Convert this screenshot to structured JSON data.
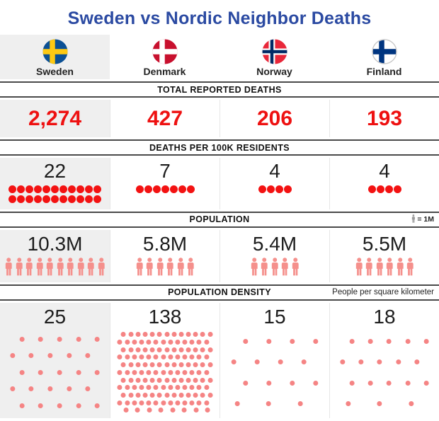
{
  "title": "Sweden vs Nordic Neighbor Deaths",
  "bands": {
    "deaths": "TOTAL REPORTED DEATHS",
    "per100k": "DEATHS PER 100K RESIDENTS",
    "population": "POPULATION",
    "population_legend": "= 1M",
    "density": "POPULATION DENSITY",
    "density_legend": "People per square kilometer"
  },
  "countries": [
    {
      "name": "Sweden",
      "highlight": true,
      "deaths": "2,274",
      "per_100k": 22,
      "population": "10.3M",
      "population_millions": 10.3,
      "density": 25,
      "flag": {
        "kind": "sweden-flag",
        "bg": "#0b5095",
        "cross": "#fdc913"
      }
    },
    {
      "name": "Denmark",
      "highlight": false,
      "deaths": "427",
      "per_100k": 7,
      "population": "5.8M",
      "population_millions": 5.8,
      "density": 138,
      "flag": {
        "kind": "denmark-flag",
        "bg": "#c8102e",
        "cross": "#ffffff"
      }
    },
    {
      "name": "Norway",
      "highlight": false,
      "deaths": "206",
      "per_100k": 4,
      "population": "5.4M",
      "population_millions": 5.4,
      "density": 15,
      "flag": {
        "kind": "norway-flag",
        "bg": "#e8273a",
        "cross": "#ffffff",
        "inner": "#002a66"
      }
    },
    {
      "name": "Finland",
      "highlight": false,
      "deaths": "193",
      "per_100k": 4,
      "population": "5.5M",
      "population_millions": 5.5,
      "density": 18,
      "flag": {
        "kind": "finland-flag",
        "bg": "#ffffff",
        "cross": "#003580",
        "border": "#c9c9c9"
      }
    }
  ],
  "colors": {
    "title": "#2b4aa2",
    "death_value": "#ee1111",
    "death_dot": "#f31212",
    "person": "#f5908c",
    "density_dot": "#f58484",
    "legend_person": "#9a9a9a",
    "band_border": "#4a4a4a",
    "highlight_bg": "#efefef"
  },
  "chart_data": {
    "type": "table",
    "title": "Sweden vs Nordic Neighbor Deaths",
    "categories": [
      "Sweden",
      "Denmark",
      "Norway",
      "Finland"
    ],
    "series": [
      {
        "name": "Total reported deaths",
        "values": [
          2274,
          427,
          206,
          193
        ]
      },
      {
        "name": "Deaths per 100K residents",
        "values": [
          22,
          7,
          4,
          4
        ]
      },
      {
        "name": "Population (millions)",
        "values": [
          10.3,
          5.8,
          5.4,
          5.5
        ]
      },
      {
        "name": "Population density (people per square kilometer)",
        "values": [
          25,
          138,
          15,
          18
        ]
      }
    ],
    "legend_notes": [
      "1 person icon = 1M population",
      "Deaths-per-100K shown as 1 red dot per death"
    ],
    "layout": "pictogram comparison table, Sweden column highlighted gray"
  }
}
